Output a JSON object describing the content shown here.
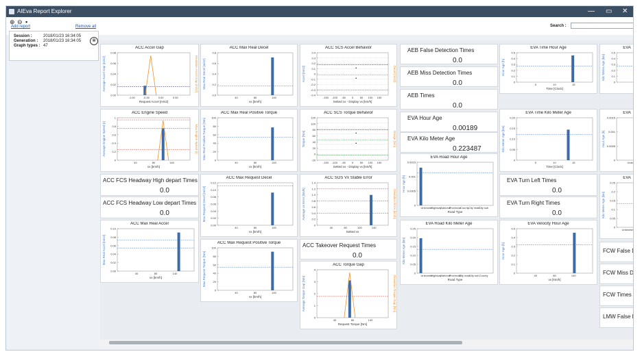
{
  "window": {
    "title": "AIEva Report Explorer",
    "minimize": "—",
    "restore": "▭",
    "close": "✕"
  },
  "toolbar": {
    "zoom_in_icon": "⊕",
    "zoom_out_icon": "⊖",
    "save_icon": "▪",
    "add_report": "Add report",
    "remove_all": "Remove all",
    "search_label": "Search :"
  },
  "session": {
    "rows": [
      {
        "label": "Session :",
        "value": "2018/01/23 16:34:05"
      },
      {
        "label": "Generation :",
        "value": "2018/01/23 16:34:05"
      },
      {
        "label": "Graph types :",
        "value": "47"
      }
    ],
    "go_icon": "⊗"
  },
  "colors": {
    "bar": "#3d6ba8",
    "orange": "#e8922c",
    "red": "#e0453a",
    "blue": "#4a7fd0",
    "green": "#3f9f4c",
    "purple": "#8a55b5"
  },
  "metrics": {
    "aeb_false": {
      "label": "AEB False Detection Times",
      "value": "0.0"
    },
    "aeb_miss": {
      "label": "AEB Miss Detection Times",
      "value": "0.0"
    },
    "aeb_times": {
      "label": "AEB Times",
      "value": "0.0"
    },
    "eva_hour_age": {
      "label": "EVA Hour Age",
      "value": "0.00189"
    },
    "eva_km_age": {
      "label": "EVA Kilo Meter Age",
      "value": "0.223487"
    },
    "acc_fcs_high": {
      "label": "ACC FCS Headway High depart Times",
      "value": "0.0"
    },
    "acc_fcs_low": {
      "label": "ACC FCS Headway Low depart Times",
      "value": "0.0"
    },
    "eva_turn_left": {
      "label": "EVA Turn Left Times",
      "value": "0.0"
    },
    "eva_turn_right": {
      "label": "EVA Turn Right Times",
      "value": "0.0"
    },
    "acc_takeover": {
      "label": "ACC Takeover Request Times",
      "value": "0.0"
    },
    "fcw_false": {
      "label": "FCW False Dete"
    },
    "fcw_miss": {
      "label": "FCW Miss Dete"
    },
    "fcw_times": {
      "label": "FCW Times"
    },
    "lmw_false": {
      "label": "LMW False De"
    }
  },
  "chart_data": [
    {
      "key": "c1",
      "title": "ACC Accel Gap",
      "type": "bar",
      "xlabel": "Request Accel [m/s2]",
      "ylabel": "Average Accel Gap [m/s2]",
      "y2label": "Deviation Accel Gap [m/s2]",
      "xticks": [
        "-1.00",
        "-0.50",
        "0.00",
        "0.50"
      ],
      "yticks": [
        "0.08",
        "0.06",
        "0.04",
        "0.02",
        "0.00"
      ],
      "ylim": [
        0,
        0.09
      ],
      "bars": [
        {
          "x": 0.38,
          "y": 0.02
        }
      ],
      "refs": [
        {
          "y": 0.018,
          "color": "red"
        },
        {
          "y": 0.018,
          "color": "blue"
        }
      ],
      "overlay": {
        "type": "orange-spike",
        "x": 0.46
      }
    },
    {
      "key": "c2",
      "title": "ACC Max Real Decel",
      "type": "bar",
      "xlabel": "vx [km/h]",
      "ylabel": "Max Real Decel [m/s2]",
      "xticks": [
        "40",
        "80",
        "140"
      ],
      "yticks": [
        "0.8",
        "0.6",
        "0.4",
        "0.2",
        "0.0"
      ],
      "ylim": [
        0,
        0.9
      ],
      "bars": [
        {
          "x": 0.73,
          "y": 0.8
        }
      ],
      "refs": [
        {
          "y": 0.2,
          "color": "blue"
        }
      ]
    },
    {
      "key": "c3",
      "title": "ACC SCS Accel Behavior",
      "type": "scatter",
      "xlabel": "Setted vx - Display vx [km/h]",
      "ylabel": "Accel [m/s2]",
      "y2label": "Decel [m/s2]",
      "xticks": [
        "-150",
        "-100",
        "-50",
        "0",
        "50",
        "100",
        "150"
      ],
      "yticks": [
        "0.4",
        "0.3",
        "0.2",
        "0.1",
        "0",
        "-0.1",
        "-0.2",
        "-0.3",
        "-0.4"
      ],
      "ylim": [
        -0.4,
        0.4
      ]
    },
    {
      "key": "c4",
      "title": "ACC Engine Speed",
      "type": "bar",
      "xlabel": "vx [km/h]",
      "ylabel": "Average Engine Speed [r]",
      "y2label": "Max Engine Speed [r]",
      "xticks": [
        "40",
        "80",
        "140"
      ],
      "yticks": [
        "1",
        "0.8",
        "0.6",
        "0.4",
        "0.2",
        "0"
      ],
      "ylim": [
        0,
        1
      ],
      "bars": [
        {
          "x": 0.63,
          "y": 0.75
        }
      ],
      "refs": [
        {
          "y": 0.95,
          "color": "red"
        },
        {
          "y": 0.75,
          "color": "red"
        },
        {
          "y": 0.25,
          "color": "red"
        }
      ],
      "overlay": {
        "type": "orange-spike",
        "x": 0.63
      }
    },
    {
      "key": "c5",
      "title": "ACC Max Real Positive Torque",
      "type": "bar",
      "xlabel": "vx [km/h]",
      "ylabel": "Max Real Positive Torque [Nm]",
      "xticks": [
        "40",
        "80",
        "140"
      ],
      "yticks": [
        "100",
        "80",
        "60",
        "40",
        "20",
        "0"
      ],
      "ylim": [
        0,
        110
      ],
      "bars": [
        {
          "x": 0.73,
          "y": 85
        }
      ],
      "refs": [
        {
          "y": 60,
          "color": "blue"
        }
      ]
    },
    {
      "key": "c6",
      "title": "ACC SCS Torque Behavior",
      "type": "scatter",
      "xlabel": "Setted vx - Display vx [km/h]",
      "ylabel": "Torque [Nm]",
      "y2label": "Range [Nm]",
      "xticks": [
        "-150",
        "-100",
        "-50",
        "0",
        "50",
        "100",
        "150"
      ],
      "yticks": [
        "120",
        "100",
        "80",
        "60",
        "40",
        "20",
        "0",
        "-20"
      ],
      "ylim": [
        -20,
        120
      ]
    },
    {
      "key": "c7",
      "title": "ACC Max Request Decel",
      "type": "bar",
      "xlabel": "vx [km/h]",
      "ylabel": "Max Request Decel [m/s2]",
      "xticks": [
        "40",
        "80",
        "140"
      ],
      "yticks": [
        "0.12",
        "0.10",
        "0.08",
        "0.06",
        "0.04",
        "0.02",
        "0.00"
      ],
      "ylim": [
        0,
        0.13
      ],
      "bars": [
        {
          "x": 0.73,
          "y": 0.1
        }
      ],
      "refs": [
        {
          "y": 0.12,
          "color": "blue"
        }
      ]
    },
    {
      "key": "c8",
      "title": "ACC SOS Vx Stable Error",
      "type": "bar",
      "xlabel": "Setted vx",
      "ylabel": "Average vx Error [km/h]",
      "y2label": "Deviation Error [km/h]",
      "xticks": [
        "40",
        "80",
        "100",
        "140"
      ],
      "yticks": [
        "1.4",
        "1.2",
        "1.0",
        "0.8",
        "0.6",
        "0.4",
        "0.2",
        "0"
      ],
      "ylim": [
        0,
        1.4
      ],
      "bars": [
        {
          "x": 0.76,
          "y": 1.0
        }
      ],
      "refs": [
        {
          "y": 1.2,
          "color": "red"
        },
        {
          "y": 0.8,
          "color": "red"
        },
        {
          "y": 0.4,
          "color": "red"
        }
      ]
    },
    {
      "key": "c9",
      "title": "ACC Max Real Accel",
      "type": "bar",
      "xlabel": "vx [km/h]",
      "ylabel": "Max Real Accel [m/s2]",
      "xticks": [
        "40",
        "80",
        "140"
      ],
      "yticks": [
        "0.10",
        "0.08",
        "0.06",
        "0.04",
        "0.02",
        "0.00"
      ],
      "ylim": [
        0,
        0.11
      ],
      "bars": [
        {
          "x": 0.8,
          "y": 0.1
        }
      ],
      "refs": [
        {
          "y": 0.08,
          "color": "blue"
        },
        {
          "y": 0.06,
          "color": "blue"
        }
      ]
    },
    {
      "key": "c10",
      "title": "ACC Max Request Positive Torque",
      "type": "bar",
      "xlabel": "vx [km/h]",
      "ylabel": "Max Request Torque [Nm]",
      "xticks": [
        "40",
        "80",
        "140"
      ],
      "yticks": [
        "100",
        "80",
        "60",
        "40",
        "20",
        "0"
      ],
      "ylim": [
        0,
        110
      ],
      "bars": [
        {
          "x": 0.73,
          "y": 100
        }
      ],
      "refs": [
        {
          "y": 60,
          "color": "blue"
        }
      ]
    },
    {
      "key": "c11",
      "title": "ACC Torque Gap",
      "type": "bar",
      "xlabel": "Request Torque [Nm]",
      "ylabel": "Average Torque Gap [Nm]",
      "y2label": "Deviation Torque Gap [Nm]",
      "xticks": [
        "40",
        "80",
        "140"
      ],
      "yticks": [
        "4",
        "3",
        "2",
        "1",
        "0"
      ],
      "ylim": [
        0,
        4.5
      ],
      "bars": [
        {
          "x": 0.46,
          "y": 3.5
        }
      ],
      "refs": [
        {
          "y": 2.0,
          "color": "red"
        }
      ],
      "overlay": {
        "type": "orange-spike",
        "x": 0.46
      }
    },
    {
      "key": "c12",
      "title": "EVA Time Hour Age",
      "type": "bar",
      "xlabel": "Time [Clock]",
      "ylabel": "Hour Age [h]",
      "xticks": [
        "5",
        "10",
        "15"
      ],
      "yticks": [
        "0.5",
        "0.4",
        "0.3",
        "0.2",
        "0.1",
        "0"
      ],
      "ylim": [
        0,
        0.55
      ],
      "bars": [
        {
          "x": 0.74,
          "y": 0.5
        }
      ],
      "refs": [
        {
          "y": 0.3,
          "color": "blue"
        }
      ]
    },
    {
      "key": "c13",
      "title": "EVA Time Kilo Meter Age",
      "type": "bar",
      "xlabel": "Time [Clock]",
      "ylabel": "Kilo Meter Age [km]",
      "xticks": [
        "5",
        "10",
        "15"
      ],
      "yticks": [
        "0.20",
        "0.15",
        "0.10",
        "0.05",
        "0"
      ],
      "ylim": [
        0,
        0.25
      ],
      "bars": [
        {
          "x": 0.68,
          "y": 0.18
        }
      ],
      "refs": [
        {
          "y": 0.15,
          "color": "blue"
        }
      ]
    },
    {
      "key": "c14",
      "title": "EVA Road Hour Age",
      "type": "bar",
      "xlabel": "Road Type",
      "ylabel": "Hour Age [h]",
      "xticks": [
        "Unknown",
        "Highway",
        "National",
        "Provincial",
        "County",
        "City main",
        "City sub"
      ],
      "yticks": [
        "0.0015",
        "0.001",
        "0.0005",
        "0"
      ],
      "ylim": [
        0,
        0.0016
      ],
      "bars": [
        {
          "x": 0.05,
          "y": 0.0014
        }
      ],
      "refs": [
        {
          "y": 0.0012,
          "color": "blue"
        }
      ]
    },
    {
      "key": "c15",
      "title": "EVA Road Kilo Meter Age",
      "type": "bar",
      "xlabel": "Road Type",
      "ylabel": "Kilo Meter Age [km]",
      "xticks": [
        "Unknown",
        "Highway",
        "National",
        "Provincial",
        "City main",
        "City sub",
        "County"
      ],
      "yticks": [
        "0.25",
        "0.20",
        "0.15",
        "0.10",
        "0.05",
        "0"
      ],
      "ylim": [
        0,
        0.28
      ],
      "bars": [
        {
          "x": 0.05,
          "y": 0.22
        }
      ],
      "refs": [
        {
          "y": 0.15,
          "color": "blue"
        }
      ]
    },
    {
      "key": "c16",
      "title": "EVA Velocity Hour Age",
      "type": "bar",
      "xlabel": "vx [km/h]",
      "ylabel": "Hour Age [h]",
      "xticks": [
        "40",
        "80",
        "140"
      ],
      "yticks": [
        "0.5",
        "0.4",
        "0.3",
        "0.2",
        "0.1",
        "0"
      ],
      "ylim": [
        0,
        0.55
      ],
      "bars": [
        {
          "x": 0.76,
          "y": 0.5
        }
      ],
      "refs": [
        {
          "y": 0.35,
          "color": "blue"
        }
      ]
    },
    {
      "key": "c17",
      "title": "EVA",
      "type": "bar",
      "xlabel": "",
      "ylabel": "Kilo Meter Age [km]",
      "xticks": [],
      "yticks": [
        "0.5",
        "0.4",
        "0.3",
        "0.2",
        "0.1",
        "0"
      ],
      "ylim": [
        0,
        0.55
      ],
      "bars": [],
      "refs": [
        {
          "y": 0.3,
          "color": "blue"
        }
      ]
    },
    {
      "key": "c18",
      "title": "EVA",
      "type": "bar",
      "xlabel": "",
      "ylabel": "Hour Age [h]",
      "xticks": [
        "Unknown"
      ],
      "yticks": [
        "0.0015",
        "0.001",
        "0.0005",
        "0"
      ],
      "ylim": [
        0,
        0.0016
      ],
      "bars": [
        {
          "x": 0.6,
          "y": 0.0013
        }
      ],
      "refs": []
    },
    {
      "key": "c19",
      "title": "EVA",
      "type": "bar",
      "xlabel": "",
      "ylabel": "Kilo Meter Age [km]",
      "xticks": [
        "Unknown",
        "Highway"
      ],
      "yticks": [
        "0.25",
        "0.2",
        "0.15",
        "0.1",
        "0.05",
        "0"
      ],
      "ylim": [
        0,
        0.28
      ],
      "bars": [
        {
          "x": 0.55,
          "y": 0.2
        }
      ],
      "refs": [
        {
          "y": 0.15,
          "color": "blue"
        }
      ]
    }
  ]
}
